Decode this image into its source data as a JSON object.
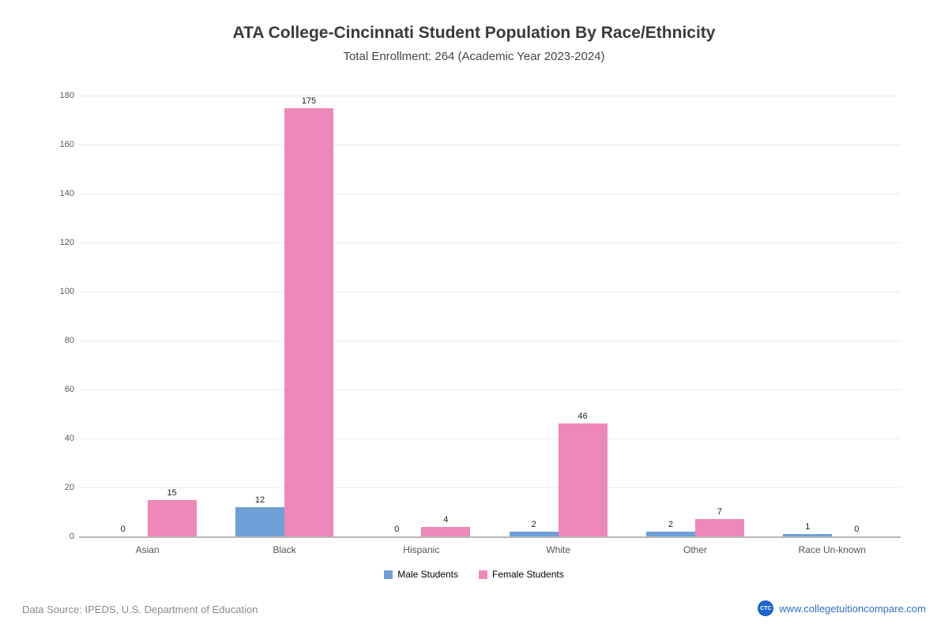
{
  "title": "ATA College-Cincinnati Student Population By Race/Ethnicity",
  "subtitle": "Total Enrollment: 264 (Academic Year 2023-2024)",
  "chart_data": {
    "type": "bar",
    "title": "ATA College-Cincinnati Student Population By Race/Ethnicity",
    "subtitle": "Total Enrollment: 264 (Academic Year 2023-2024)",
    "categories": [
      "Asian",
      "Black",
      "Hispanic",
      "White",
      "Other",
      "Race Un-known"
    ],
    "series": [
      {
        "name": "Male Students",
        "color": "#6e9fd6",
        "values": [
          0,
          12,
          0,
          2,
          2,
          1
        ]
      },
      {
        "name": "Female Students",
        "color": "#ee87ba",
        "values": [
          15,
          175,
          4,
          46,
          7,
          0
        ]
      }
    ],
    "ylim": [
      0,
      180
    ],
    "yticks": [
      0,
      20,
      40,
      60,
      80,
      100,
      120,
      140,
      160,
      180
    ],
    "grid": true,
    "legend_position": "bottom"
  },
  "footer": {
    "source": "Data Source: IPEDS, U.S. Department of Education",
    "logo": "CTC",
    "site": "www.collegetuitioncompare.com"
  }
}
